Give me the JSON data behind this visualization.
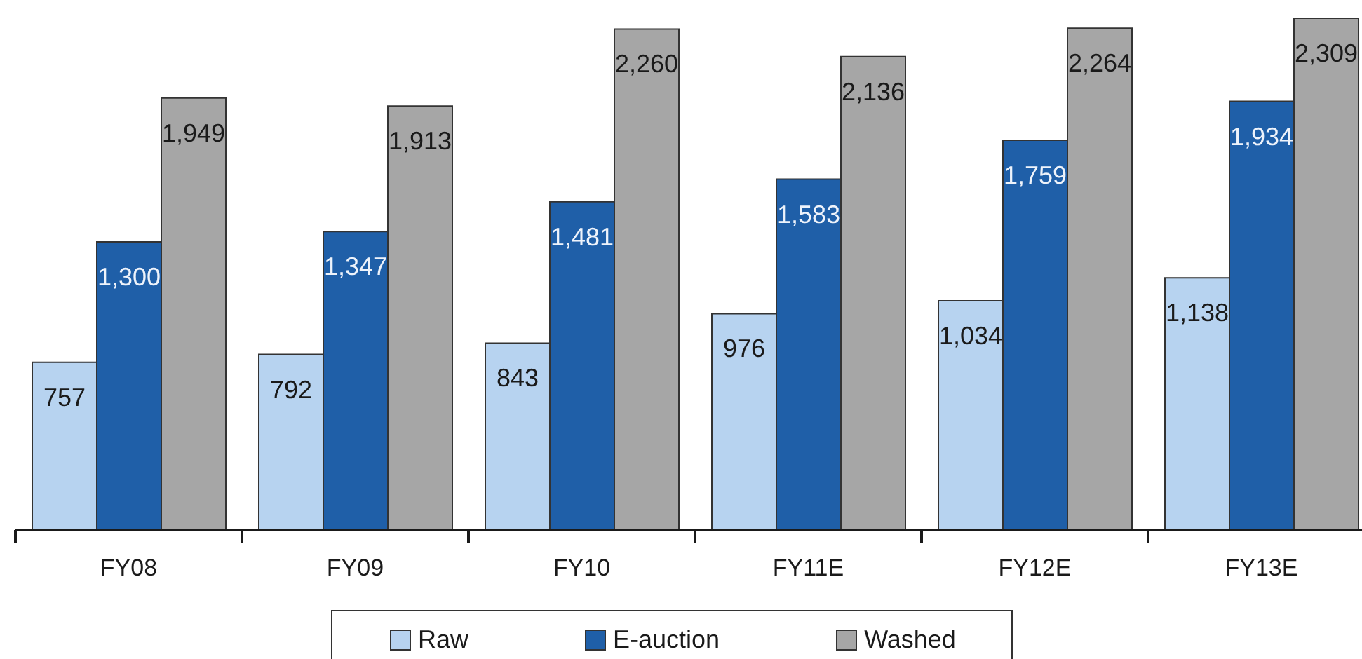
{
  "chart_data": {
    "type": "bar",
    "categories": [
      "FY08",
      "FY09",
      "FY10",
      "FY11E",
      "FY12E",
      "FY13E"
    ],
    "series": [
      {
        "name": "Raw",
        "color": "#b7d3f0",
        "values": [
          757,
          792,
          843,
          976,
          1034,
          1138
        ],
        "value_labels": [
          "757",
          "792",
          "843",
          "976",
          "1,034",
          "1,138"
        ]
      },
      {
        "name": "E-auction",
        "color": "#1f5fa8",
        "values": [
          1300,
          1347,
          1481,
          1583,
          1759,
          1934
        ],
        "value_labels": [
          "1,300",
          "1,347",
          "1,481",
          "1,583",
          "1,759",
          "1,934"
        ]
      },
      {
        "name": "Washed",
        "color": "#a6a6a6",
        "values": [
          1949,
          1913,
          2260,
          2136,
          2264,
          2309
        ],
        "value_labels": [
          "1,949",
          "1,913",
          "2,260",
          "2,136",
          "2,264",
          "2,309"
        ]
      }
    ],
    "legend": "bottom",
    "tick_labels": "x"
  }
}
